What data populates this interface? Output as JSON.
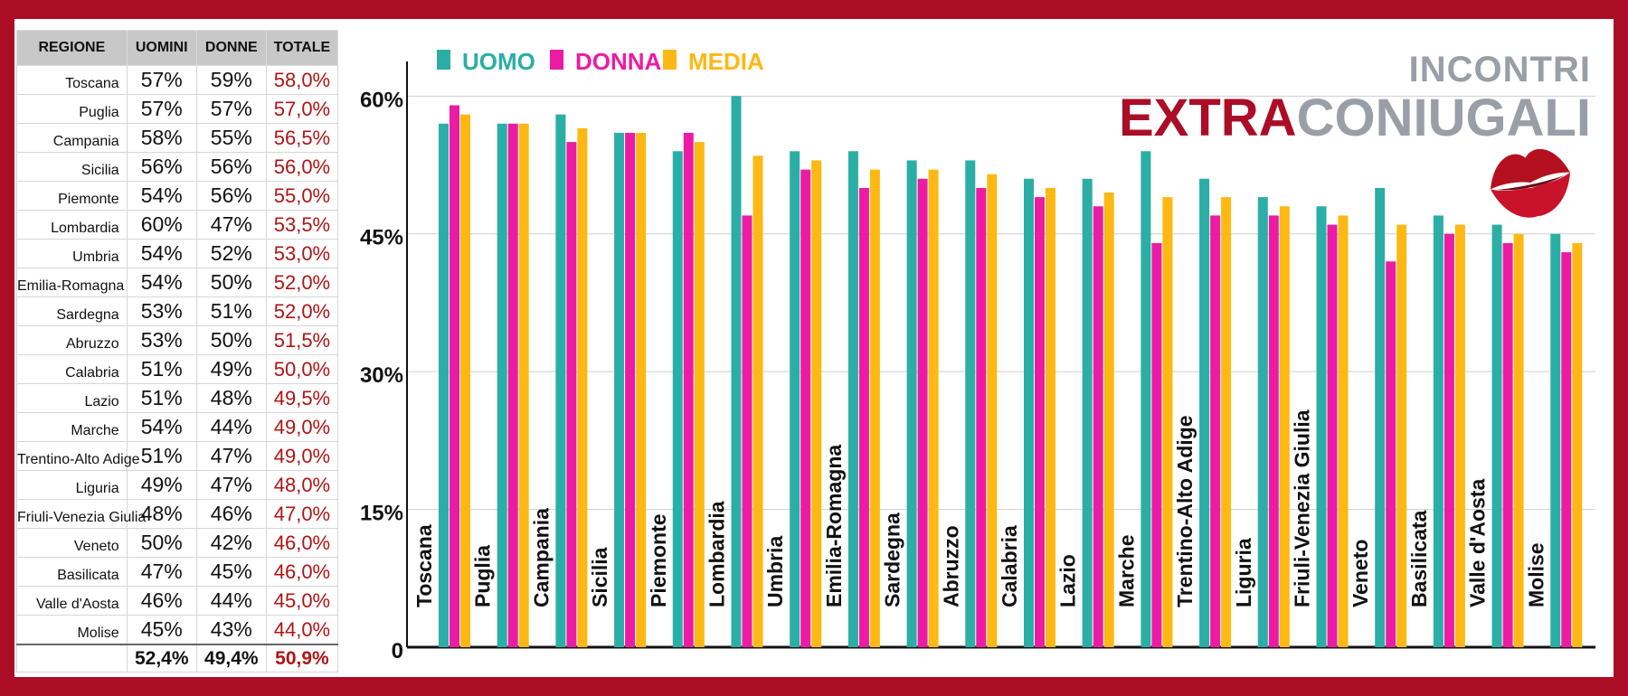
{
  "table": {
    "headers": [
      "REGIONE",
      "UOMINI",
      "DONNE",
      "TOTALE"
    ],
    "rows": [
      [
        "Toscana",
        "57%",
        "59%",
        "58,0%"
      ],
      [
        "Puglia",
        "57%",
        "57%",
        "57,0%"
      ],
      [
        "Campania",
        "58%",
        "55%",
        "56,5%"
      ],
      [
        "Sicilia",
        "56%",
        "56%",
        "56,0%"
      ],
      [
        "Piemonte",
        "54%",
        "56%",
        "55,0%"
      ],
      [
        "Lombardia",
        "60%",
        "47%",
        "53,5%"
      ],
      [
        "Umbria",
        "54%",
        "52%",
        "53,0%"
      ],
      [
        "Emilia-Romagna",
        "54%",
        "50%",
        "52,0%"
      ],
      [
        "Sardegna",
        "53%",
        "51%",
        "52,0%"
      ],
      [
        "Abruzzo",
        "53%",
        "50%",
        "51,5%"
      ],
      [
        "Calabria",
        "51%",
        "49%",
        "50,0%"
      ],
      [
        "Lazio",
        "51%",
        "48%",
        "49,5%"
      ],
      [
        "Marche",
        "54%",
        "44%",
        "49,0%"
      ],
      [
        "Trentino-Alto Adige",
        "51%",
        "47%",
        "49,0%"
      ],
      [
        "Liguria",
        "49%",
        "47%",
        "48,0%"
      ],
      [
        "Friuli-Venezia Giulia",
        "48%",
        "46%",
        "47,0%"
      ],
      [
        "Veneto",
        "50%",
        "42%",
        "46,0%"
      ],
      [
        "Basilicata",
        "47%",
        "45%",
        "46,0%"
      ],
      [
        "Valle d'Aosta",
        "46%",
        "44%",
        "45,0%"
      ],
      [
        "Molise",
        "45%",
        "43%",
        "44,0%"
      ]
    ],
    "totals": [
      "",
      "52,4%",
      "49,4%",
      "50,9%"
    ]
  },
  "logo": {
    "line1": "INCONTRI",
    "line2_part1": "EXTRA",
    "line2_part2": "CONIUGALI",
    "icon": "lips-kiss-icon"
  },
  "colors": {
    "frame": "#ac0d26",
    "uomo": "#2aaea6",
    "donna": "#ec1ba4",
    "media": "#fdb813",
    "total_text": "#b01414"
  },
  "chart_data": {
    "type": "bar",
    "categories": [
      "Toscana",
      "Puglia",
      "Campania",
      "Sicilia",
      "Piemonte",
      "Lombardia",
      "Umbria",
      "Emilia-Romagna",
      "Sardegna",
      "Abruzzo",
      "Calabria",
      "Lazio",
      "Marche",
      "Trentino-Alto Adige",
      "Liguria",
      "Friuli-Venezia Giulia",
      "Veneto",
      "Basilicata",
      "Valle d'Aosta",
      "Molise"
    ],
    "series": [
      {
        "name": "UOMO",
        "values": [
          57,
          57,
          58,
          56,
          54,
          60,
          54,
          54,
          53,
          53,
          51,
          51,
          54,
          51,
          49,
          48,
          50,
          47,
          46,
          45
        ]
      },
      {
        "name": "DONNA",
        "values": [
          59,
          57,
          55,
          56,
          56,
          47,
          52,
          50,
          51,
          50,
          49,
          48,
          44,
          47,
          47,
          46,
          42,
          45,
          44,
          43
        ]
      },
      {
        "name": "MEDIA",
        "values": [
          58,
          57,
          56.5,
          56,
          55,
          53.5,
          53,
          52,
          52,
          51.5,
          50,
          49.5,
          49,
          49,
          48,
          47,
          46,
          46,
          45,
          44
        ]
      }
    ],
    "yticks": [
      "0",
      "15%",
      "30%",
      "45%",
      "60%"
    ],
    "ytick_values": [
      0,
      15,
      30,
      45,
      60
    ],
    "ylim": [
      0,
      62
    ],
    "grid": true,
    "legend": "top-left"
  }
}
